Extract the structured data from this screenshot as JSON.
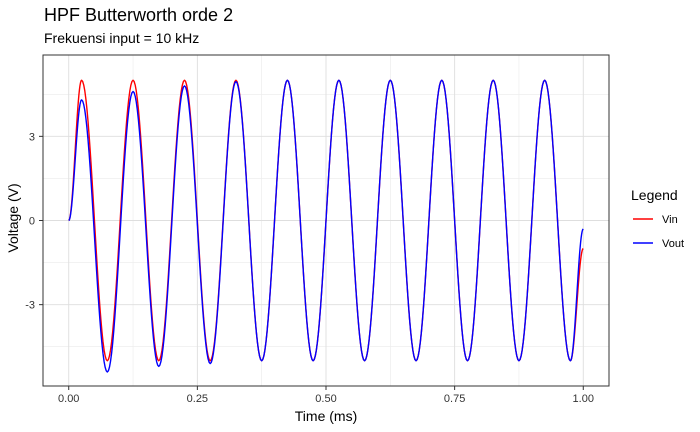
{
  "chart_data": {
    "type": "line",
    "title": "HPF Butterworth orde 2",
    "subtitle": "Frekuensi input = 10 kHz",
    "xlabel": "Time (ms)",
    "ylabel": "Voltage (V)",
    "xlim": [
      -0.05,
      1.05
    ],
    "ylim": [
      -5.9,
      5.9
    ],
    "x_ticks": [
      0.0,
      0.25,
      0.5,
      0.75,
      1.0
    ],
    "x_tick_labels": [
      "0.00",
      "0.25",
      "0.50",
      "0.75",
      "1.00"
    ],
    "y_ticks": [
      -3,
      0,
      3
    ],
    "y_tick_labels": [
      "-3",
      "0",
      "3"
    ],
    "grid": true,
    "legend": {
      "title": "Legend",
      "position": "right"
    },
    "series": [
      {
        "name": "Vin",
        "color": "#ff0000",
        "x": [
          0.0,
          0.025,
          0.075,
          0.125,
          0.175,
          0.225,
          0.275,
          0.325,
          0.375,
          0.425,
          0.475,
          0.525,
          0.575,
          0.625,
          0.675,
          0.725,
          0.775,
          0.825,
          0.875,
          0.925,
          0.975,
          1.0
        ],
        "values": [
          0,
          5,
          -5,
          5,
          -5,
          5,
          -5,
          5,
          -5,
          5,
          -5,
          5,
          -5,
          5,
          -5,
          5,
          -5,
          5,
          -5,
          5,
          -5,
          -1
        ]
      },
      {
        "name": "Vout",
        "color": "#0000ff",
        "x": [
          0.0,
          0.025,
          0.075,
          0.125,
          0.175,
          0.225,
          0.275,
          0.325,
          0.375,
          0.425,
          0.475,
          0.525,
          0.575,
          0.625,
          0.675,
          0.725,
          0.775,
          0.825,
          0.875,
          0.925,
          0.975,
          1.0
        ],
        "values": [
          0,
          4.3,
          -5.4,
          4.6,
          -5.2,
          4.8,
          -5.1,
          4.95,
          -5.0,
          5.0,
          -5.0,
          5.0,
          -5.0,
          5.0,
          -5.0,
          5.0,
          -5.0,
          5.0,
          -5.0,
          5.0,
          -5.0,
          -0.3
        ]
      }
    ]
  }
}
